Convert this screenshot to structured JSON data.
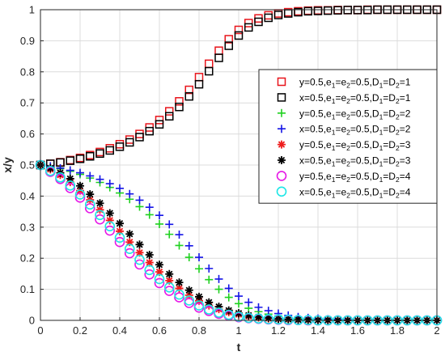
{
  "chart_data": {
    "type": "scatter",
    "xlabel": "t",
    "ylabel": "x/y",
    "xlim": [
      0,
      2
    ],
    "ylim": [
      0,
      1
    ],
    "xticks": [
      "0",
      "0.2",
      "0.4",
      "0.6",
      "0.8",
      "1",
      "1.2",
      "1.4",
      "1.6",
      "1.8",
      "2"
    ],
    "yticks": [
      "0",
      "0.1",
      "0.2",
      "0.3",
      "0.4",
      "0.5",
      "0.6",
      "0.7",
      "0.8",
      "0.9",
      "1"
    ],
    "grid": true,
    "legend_position": "right",
    "x": [
      0,
      0.05,
      0.1,
      0.15,
      0.2,
      0.25,
      0.3,
      0.35,
      0.4,
      0.45,
      0.5,
      0.55,
      0.6,
      0.65,
      0.7,
      0.75,
      0.8,
      0.85,
      0.9,
      0.95,
      1,
      1.05,
      1.1,
      1.15,
      1.2,
      1.25,
      1.3,
      1.35,
      1.4,
      1.45,
      1.5,
      1.55,
      1.6,
      1.65,
      1.7,
      1.75,
      1.8,
      1.85,
      1.9,
      1.95,
      2
    ],
    "series": [
      {
        "name": "y=0.5,e1=e2=0.5,D1=D2=1",
        "legend": {
          "base": "y=0.5,e",
          "s1": "1",
          "m1": "=e",
          "s2": "2",
          "m2": "=0.5,D",
          "s3": "1",
          "m3": "=D",
          "s4": "2",
          "end": "=1"
        },
        "marker": "square",
        "color": "#e8141b",
        "values": [
          0.5,
          0.504,
          0.509,
          0.516,
          0.523,
          0.532,
          0.542,
          0.554,
          0.567,
          0.582,
          0.6,
          0.621,
          0.645,
          0.673,
          0.705,
          0.742,
          0.783,
          0.826,
          0.868,
          0.905,
          0.935,
          0.957,
          0.972,
          0.982,
          0.988,
          0.992,
          0.995,
          0.997,
          0.998,
          0.998,
          0.999,
          0.999,
          0.999,
          1,
          1,
          1,
          1,
          1,
          1,
          1,
          1
        ]
      },
      {
        "name": "x=0.5,e1=e2=0.5,D1=D2=1",
        "legend": {
          "base": "x=0.5,e",
          "s1": "1",
          "m1": "=e",
          "s2": "2",
          "m2": "=0.5,D",
          "s3": "1",
          "m3": "=D",
          "s4": "2",
          "end": "=1"
        },
        "marker": "square",
        "color": "#000000",
        "values": [
          0.5,
          0.504,
          0.508,
          0.514,
          0.52,
          0.528,
          0.537,
          0.547,
          0.559,
          0.573,
          0.59,
          0.609,
          0.631,
          0.657,
          0.687,
          0.721,
          0.76,
          0.802,
          0.845,
          0.884,
          0.917,
          0.943,
          0.961,
          0.974,
          0.983,
          0.988,
          0.992,
          0.995,
          0.996,
          0.997,
          0.998,
          0.999,
          0.999,
          0.999,
          1,
          1,
          1,
          1,
          1,
          1,
          1
        ]
      },
      {
        "name": "y=0.5,e1=e2=0.5,D1=D2=2",
        "legend": {
          "base": "y=0.5,e",
          "s1": "1",
          "m1": "=e",
          "s2": "2",
          "m2": "=0.5,D",
          "s3": "1",
          "m3": "=D",
          "s4": "2",
          "end": "=2"
        },
        "marker": "plus",
        "color": "#1fd11f",
        "values": [
          0.5,
          0.495,
          0.488,
          0.48,
          0.47,
          0.458,
          0.444,
          0.428,
          0.41,
          0.39,
          0.366,
          0.34,
          0.31,
          0.277,
          0.241,
          0.203,
          0.166,
          0.131,
          0.1,
          0.074,
          0.054,
          0.039,
          0.028,
          0.02,
          0.014,
          0.01,
          0.007,
          0.005,
          0.003,
          0.002,
          0.002,
          0.001,
          0.001,
          0.001,
          0,
          0,
          0,
          0,
          0,
          0,
          0
        ]
      },
      {
        "name": "x=0.5,e1=e2=0.5,D1=D2=2",
        "legend": {
          "base": "x=0.5,e",
          "s1": "1",
          "m1": "=e",
          "s2": "2",
          "m2": "=0.5,D",
          "s3": "1",
          "m3": "=D",
          "s4": "2",
          "end": "=2"
        },
        "marker": "plus",
        "color": "#1414e6",
        "values": [
          0.5,
          0.496,
          0.49,
          0.483,
          0.475,
          0.465,
          0.454,
          0.44,
          0.425,
          0.407,
          0.387,
          0.364,
          0.338,
          0.309,
          0.276,
          0.24,
          0.203,
          0.167,
          0.133,
          0.103,
          0.078,
          0.058,
          0.042,
          0.031,
          0.022,
          0.016,
          0.011,
          0.008,
          0.006,
          0.004,
          0.003,
          0.002,
          0.001,
          0.001,
          0.001,
          0,
          0,
          0,
          0,
          0,
          0
        ]
      },
      {
        "name": "y=0.5,e1=e2=0.5,D1=D2=3",
        "legend": {
          "base": "y=0.5,e",
          "s1": "1",
          "m1": "=e",
          "s2": "2",
          "m2": "=0.5,D",
          "s3": "1",
          "m3": "=D",
          "s4": "2",
          "end": "=3"
        },
        "marker": "star",
        "color": "#ee1c1c",
        "values": [
          0.5,
          0.486,
          0.468,
          0.445,
          0.418,
          0.388,
          0.356,
          0.322,
          0.287,
          0.252,
          0.218,
          0.186,
          0.156,
          0.128,
          0.103,
          0.081,
          0.063,
          0.048,
          0.036,
          0.026,
          0.019,
          0.013,
          0.009,
          0.006,
          0.004,
          0.003,
          0.002,
          0.001,
          0.001,
          0,
          0,
          0,
          0,
          0,
          0,
          0,
          0,
          0,
          0,
          0,
          0
        ]
      },
      {
        "name": "x=0.5,e1=e2=0.5,D1=D2=3",
        "legend": {
          "base": "x=0.5,e",
          "s1": "1",
          "m1": "=e",
          "s2": "2",
          "m2": "=0.5,D",
          "s3": "1",
          "m3": "=D",
          "s4": "2",
          "end": "=3"
        },
        "marker": "star",
        "color": "#000000",
        "values": [
          0.5,
          0.49,
          0.475,
          0.456,
          0.433,
          0.406,
          0.377,
          0.345,
          0.312,
          0.278,
          0.244,
          0.211,
          0.179,
          0.149,
          0.122,
          0.097,
          0.076,
          0.058,
          0.044,
          0.032,
          0.023,
          0.016,
          0.011,
          0.008,
          0.005,
          0.004,
          0.002,
          0.002,
          0.001,
          0.001,
          0,
          0,
          0,
          0,
          0,
          0,
          0,
          0,
          0,
          0,
          0
        ]
      },
      {
        "name": "y=0.5,e1=e2=0.5,D1=D2=4",
        "legend": {
          "base": "y=0.5,e",
          "s1": "1",
          "m1": "=e",
          "s2": "2",
          "m2": "=0.5,D",
          "s3": "1",
          "m3": "=D",
          "s4": "2",
          "end": "=4"
        },
        "marker": "circle",
        "color": "#e619e6",
        "values": [
          0.5,
          0.478,
          0.455,
          0.426,
          0.395,
          0.361,
          0.325,
          0.289,
          0.252,
          0.216,
          0.18,
          0.148,
          0.12,
          0.095,
          0.074,
          0.056,
          0.041,
          0.03,
          0.021,
          0.015,
          0.01,
          0.007,
          0.005,
          0.003,
          0.002,
          0.001,
          0.001,
          0,
          0,
          0,
          0,
          0,
          0,
          0,
          0,
          0,
          0,
          0,
          0,
          0,
          0
        ]
      },
      {
        "name": "x=0.5,e1=e2=0.5,D1=D2=4",
        "legend": {
          "base": "x=0.5,e",
          "s1": "1",
          "m1": "=e",
          "s2": "2",
          "m2": "=0.5,D",
          "s3": "1",
          "m3": "=D",
          "s4": "2",
          "end": "=4"
        },
        "marker": "circle",
        "color": "#1ee6e6",
        "values": [
          0.5,
          0.481,
          0.46,
          0.434,
          0.405,
          0.373,
          0.339,
          0.303,
          0.266,
          0.23,
          0.195,
          0.162,
          0.133,
          0.106,
          0.083,
          0.064,
          0.048,
          0.035,
          0.025,
          0.018,
          0.012,
          0.008,
          0.006,
          0.004,
          0.003,
          0.002,
          0.001,
          0.001,
          0,
          0,
          0,
          0,
          0,
          0,
          0,
          0,
          0,
          0,
          0,
          0,
          0
        ]
      }
    ]
  }
}
